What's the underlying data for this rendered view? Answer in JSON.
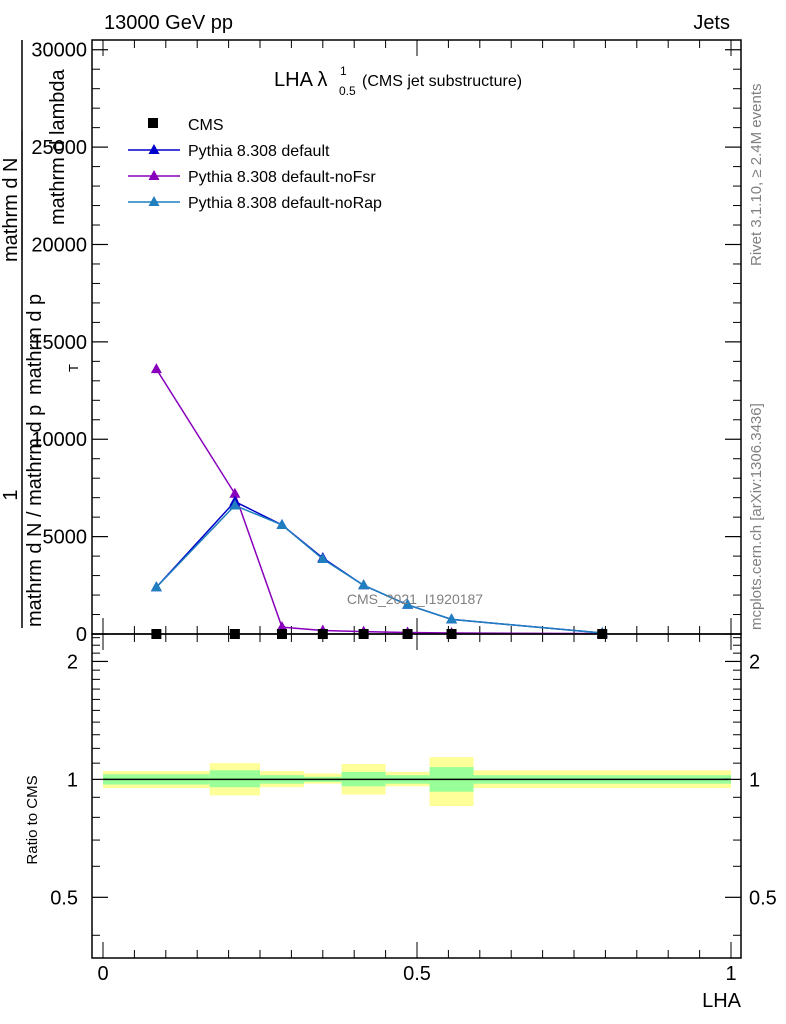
{
  "header": {
    "left": "13000 GeV pp",
    "right": "Jets"
  },
  "side_labels": {
    "rivet": "Rivet 3.1.10, ≥ 2.4M events",
    "mcplots": "mcplots.cern.ch [arXiv:1306.3436]"
  },
  "plot_title": {
    "main": "LHA λ",
    "sup": "1",
    "sub": "0.5",
    "suffix": " (CMS jet substructure)"
  },
  "watermark": "CMS_2021_I1920187",
  "ylabel_main": {
    "fraction_numerator": "1",
    "lines": [
      "mathrm d N / mathrm d p",
      "mathrm d N",
      "mathrm d p",
      "mathrm d lambda"
    ],
    "subscript": "T"
  },
  "ratio_ylabel": "Ratio to CMS",
  "xlabel": "LHA",
  "colors": {
    "cms": "#000000",
    "default": "#0000cc",
    "noFsr": "#8800bb",
    "noRap": "#1f7fbf",
    "band_outer": "#ffff99",
    "band_inner": "#99ff99"
  },
  "chart_data": [
    {
      "type": "line",
      "panel": "main",
      "xlim": [
        0,
        1
      ],
      "ylim": [
        0,
        30500
      ],
      "y_ticks": [
        0,
        5000,
        10000,
        15000,
        20000,
        25000,
        30000
      ],
      "y_tick_labels": [
        "0",
        "5000",
        "10000",
        "15000",
        "20000",
        "25000",
        "30000"
      ],
      "legend_placement": "top-left",
      "series": [
        {
          "name": "CMS",
          "marker": "square",
          "x": [
            0.085,
            0.21,
            0.285,
            0.35,
            0.415,
            0.485,
            0.555,
            0.795
          ],
          "y": [
            0,
            0,
            0,
            0,
            0,
            0,
            0,
            0
          ]
        },
        {
          "name": "Pythia 8.308 default",
          "marker": "triangle",
          "x": [
            0.085,
            0.21,
            0.285,
            0.35,
            0.415,
            0.485,
            0.555,
            0.795
          ],
          "y": [
            2400,
            6800,
            5600,
            3900,
            2500,
            1500,
            750,
            50
          ]
        },
        {
          "name": "Pythia 8.308 default-noFsr",
          "marker": "triangle",
          "x": [
            0.085,
            0.21,
            0.285,
            0.35,
            0.415,
            0.485,
            0.555,
            0.795
          ],
          "y": [
            13600,
            7200,
            350,
            180,
            120,
            80,
            50,
            20
          ]
        },
        {
          "name": "Pythia 8.308 default-noRap",
          "marker": "triangle",
          "x": [
            0.085,
            0.21,
            0.285,
            0.35,
            0.415,
            0.485,
            0.555,
            0.795
          ],
          "y": [
            2400,
            6600,
            5600,
            3850,
            2500,
            1500,
            750,
            50
          ]
        }
      ]
    },
    {
      "type": "area",
      "panel": "ratio",
      "xlim": [
        0,
        1
      ],
      "ylim": [
        0.35,
        2.35
      ],
      "y_ticks": [
        0.5,
        1,
        2
      ],
      "y_tick_labels": [
        "0.5",
        "1",
        "2"
      ],
      "x_ticks": [
        0,
        0.5,
        1
      ],
      "x_tick_labels": [
        "0",
        "0.5",
        "1"
      ],
      "reference_line": 1,
      "bands": [
        {
          "x0": 0.0,
          "x1": 0.17,
          "inner": [
            0.97,
            1.03
          ],
          "outer": [
            0.95,
            1.05
          ]
        },
        {
          "x0": 0.17,
          "x1": 0.25,
          "inner": [
            0.955,
            1.055
          ],
          "outer": [
            0.91,
            1.1
          ]
        },
        {
          "x0": 0.25,
          "x1": 0.32,
          "inner": [
            0.975,
            1.025
          ],
          "outer": [
            0.955,
            1.05
          ]
        },
        {
          "x0": 0.32,
          "x1": 0.38,
          "inner": [
            0.985,
            1.015
          ],
          "outer": [
            0.975,
            1.035
          ]
        },
        {
          "x0": 0.38,
          "x1": 0.45,
          "inner": [
            0.96,
            1.045
          ],
          "outer": [
            0.915,
            1.095
          ]
        },
        {
          "x0": 0.45,
          "x1": 0.52,
          "inner": [
            0.975,
            1.025
          ],
          "outer": [
            0.96,
            1.045
          ]
        },
        {
          "x0": 0.52,
          "x1": 0.59,
          "inner": [
            0.93,
            1.075
          ],
          "outer": [
            0.855,
            1.14
          ]
        },
        {
          "x0": 0.59,
          "x1": 1.0,
          "inner": [
            0.975,
            1.025
          ],
          "outer": [
            0.95,
            1.055
          ]
        }
      ]
    }
  ]
}
